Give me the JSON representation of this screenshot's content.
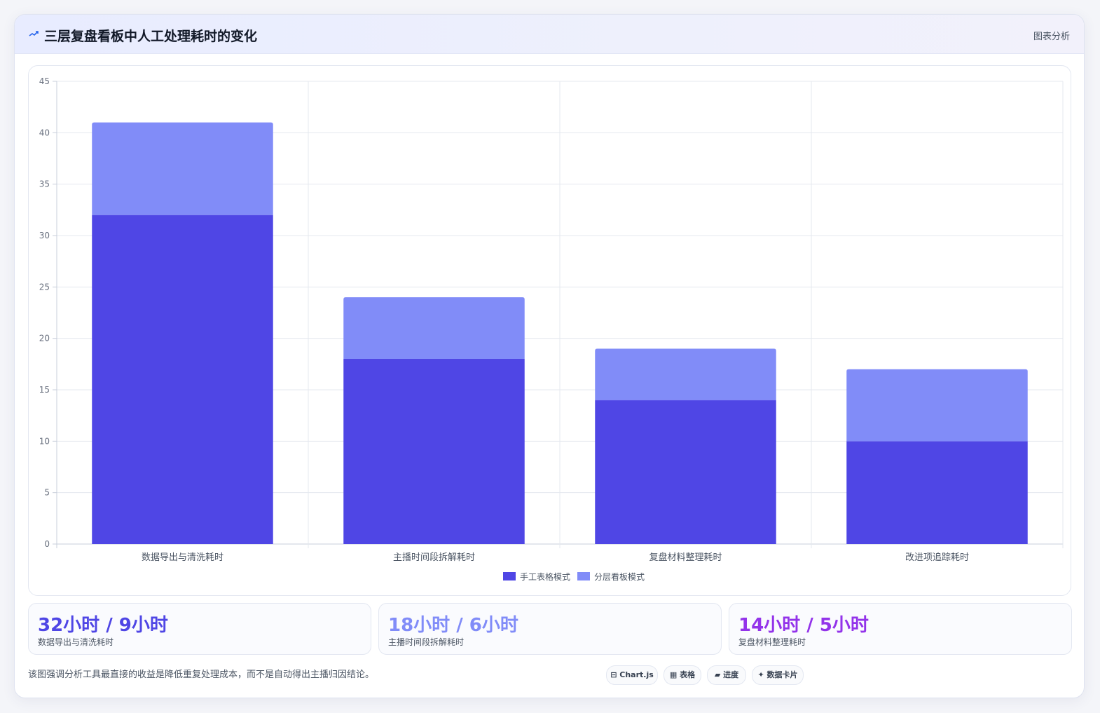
{
  "header": {
    "title": "三层复盘看板中人工处理耗时的变化",
    "tag": "图表分析"
  },
  "chart_data": {
    "type": "bar",
    "stacked": true,
    "categories": [
      "数据导出与清洗耗时",
      "主播时间段拆解耗时",
      "复盘材料整理耗时",
      "改进项追踪耗时"
    ],
    "series": [
      {
        "name": "手工表格模式",
        "values": [
          32,
          18,
          14,
          10
        ],
        "color": "#4f46e5"
      },
      {
        "name": "分层看板模式",
        "values": [
          9,
          6,
          5,
          7
        ],
        "color": "#818cf8"
      }
    ],
    "ylim": [
      0,
      45
    ],
    "yticks": [
      "0",
      "5",
      "10",
      "15",
      "20",
      "25",
      "30",
      "35",
      "40",
      "45"
    ],
    "grid": true,
    "legend": "bottom"
  },
  "stats": [
    {
      "value": "32小时 / 9小时",
      "label": "数据导出与清洗耗时",
      "color": "#4f46e5"
    },
    {
      "value": "18小时 / 6小时",
      "label": "主播时间段拆解耗时",
      "color": "#818cf8"
    },
    {
      "value": "14小时 / 5小时",
      "label": "复盘材料整理耗时",
      "color": "#9333ea"
    }
  ],
  "footer": {
    "note": "该图强调分析工具最直接的收益是降低重复处理成本，而不是自动得出主播归因结论。",
    "chips": [
      "Chart.js",
      "表格",
      "进度",
      "数据卡片"
    ]
  }
}
